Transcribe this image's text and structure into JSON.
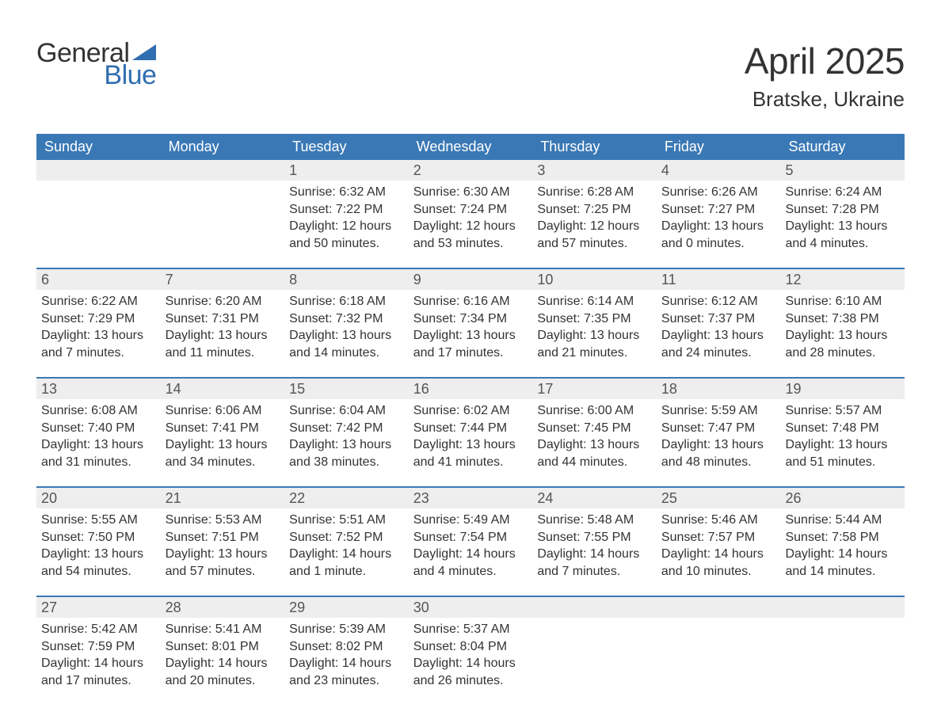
{
  "logo": {
    "text_general": "General",
    "text_blue": "Blue",
    "brand_color": "#2f6eb0"
  },
  "title": "April 2025",
  "location": "Bratske, Ukraine",
  "colors": {
    "header_bg": "#3a78b5",
    "header_text": "#ffffff",
    "daynum_bg": "#eeeeee",
    "body_text": "#333333",
    "row_border": "#3a78b5"
  },
  "weekdays": [
    "Sunday",
    "Monday",
    "Tuesday",
    "Wednesday",
    "Thursday",
    "Friday",
    "Saturday"
  ],
  "weeks": [
    [
      {
        "day": "",
        "sunrise": "",
        "sunset": "",
        "daylight": ""
      },
      {
        "day": "",
        "sunrise": "",
        "sunset": "",
        "daylight": ""
      },
      {
        "day": "1",
        "sunrise": "Sunrise: 6:32 AM",
        "sunset": "Sunset: 7:22 PM",
        "daylight": "Daylight: 12 hours and 50 minutes."
      },
      {
        "day": "2",
        "sunrise": "Sunrise: 6:30 AM",
        "sunset": "Sunset: 7:24 PM",
        "daylight": "Daylight: 12 hours and 53 minutes."
      },
      {
        "day": "3",
        "sunrise": "Sunrise: 6:28 AM",
        "sunset": "Sunset: 7:25 PM",
        "daylight": "Daylight: 12 hours and 57 minutes."
      },
      {
        "day": "4",
        "sunrise": "Sunrise: 6:26 AM",
        "sunset": "Sunset: 7:27 PM",
        "daylight": "Daylight: 13 hours and 0 minutes."
      },
      {
        "day": "5",
        "sunrise": "Sunrise: 6:24 AM",
        "sunset": "Sunset: 7:28 PM",
        "daylight": "Daylight: 13 hours and 4 minutes."
      }
    ],
    [
      {
        "day": "6",
        "sunrise": "Sunrise: 6:22 AM",
        "sunset": "Sunset: 7:29 PM",
        "daylight": "Daylight: 13 hours and 7 minutes."
      },
      {
        "day": "7",
        "sunrise": "Sunrise: 6:20 AM",
        "sunset": "Sunset: 7:31 PM",
        "daylight": "Daylight: 13 hours and 11 minutes."
      },
      {
        "day": "8",
        "sunrise": "Sunrise: 6:18 AM",
        "sunset": "Sunset: 7:32 PM",
        "daylight": "Daylight: 13 hours and 14 minutes."
      },
      {
        "day": "9",
        "sunrise": "Sunrise: 6:16 AM",
        "sunset": "Sunset: 7:34 PM",
        "daylight": "Daylight: 13 hours and 17 minutes."
      },
      {
        "day": "10",
        "sunrise": "Sunrise: 6:14 AM",
        "sunset": "Sunset: 7:35 PM",
        "daylight": "Daylight: 13 hours and 21 minutes."
      },
      {
        "day": "11",
        "sunrise": "Sunrise: 6:12 AM",
        "sunset": "Sunset: 7:37 PM",
        "daylight": "Daylight: 13 hours and 24 minutes."
      },
      {
        "day": "12",
        "sunrise": "Sunrise: 6:10 AM",
        "sunset": "Sunset: 7:38 PM",
        "daylight": "Daylight: 13 hours and 28 minutes."
      }
    ],
    [
      {
        "day": "13",
        "sunrise": "Sunrise: 6:08 AM",
        "sunset": "Sunset: 7:40 PM",
        "daylight": "Daylight: 13 hours and 31 minutes."
      },
      {
        "day": "14",
        "sunrise": "Sunrise: 6:06 AM",
        "sunset": "Sunset: 7:41 PM",
        "daylight": "Daylight: 13 hours and 34 minutes."
      },
      {
        "day": "15",
        "sunrise": "Sunrise: 6:04 AM",
        "sunset": "Sunset: 7:42 PM",
        "daylight": "Daylight: 13 hours and 38 minutes."
      },
      {
        "day": "16",
        "sunrise": "Sunrise: 6:02 AM",
        "sunset": "Sunset: 7:44 PM",
        "daylight": "Daylight: 13 hours and 41 minutes."
      },
      {
        "day": "17",
        "sunrise": "Sunrise: 6:00 AM",
        "sunset": "Sunset: 7:45 PM",
        "daylight": "Daylight: 13 hours and 44 minutes."
      },
      {
        "day": "18",
        "sunrise": "Sunrise: 5:59 AM",
        "sunset": "Sunset: 7:47 PM",
        "daylight": "Daylight: 13 hours and 48 minutes."
      },
      {
        "day": "19",
        "sunrise": "Sunrise: 5:57 AM",
        "sunset": "Sunset: 7:48 PM",
        "daylight": "Daylight: 13 hours and 51 minutes."
      }
    ],
    [
      {
        "day": "20",
        "sunrise": "Sunrise: 5:55 AM",
        "sunset": "Sunset: 7:50 PM",
        "daylight": "Daylight: 13 hours and 54 minutes."
      },
      {
        "day": "21",
        "sunrise": "Sunrise: 5:53 AM",
        "sunset": "Sunset: 7:51 PM",
        "daylight": "Daylight: 13 hours and 57 minutes."
      },
      {
        "day": "22",
        "sunrise": "Sunrise: 5:51 AM",
        "sunset": "Sunset: 7:52 PM",
        "daylight": "Daylight: 14 hours and 1 minute."
      },
      {
        "day": "23",
        "sunrise": "Sunrise: 5:49 AM",
        "sunset": "Sunset: 7:54 PM",
        "daylight": "Daylight: 14 hours and 4 minutes."
      },
      {
        "day": "24",
        "sunrise": "Sunrise: 5:48 AM",
        "sunset": "Sunset: 7:55 PM",
        "daylight": "Daylight: 14 hours and 7 minutes."
      },
      {
        "day": "25",
        "sunrise": "Sunrise: 5:46 AM",
        "sunset": "Sunset: 7:57 PM",
        "daylight": "Daylight: 14 hours and 10 minutes."
      },
      {
        "day": "26",
        "sunrise": "Sunrise: 5:44 AM",
        "sunset": "Sunset: 7:58 PM",
        "daylight": "Daylight: 14 hours and 14 minutes."
      }
    ],
    [
      {
        "day": "27",
        "sunrise": "Sunrise: 5:42 AM",
        "sunset": "Sunset: 7:59 PM",
        "daylight": "Daylight: 14 hours and 17 minutes."
      },
      {
        "day": "28",
        "sunrise": "Sunrise: 5:41 AM",
        "sunset": "Sunset: 8:01 PM",
        "daylight": "Daylight: 14 hours and 20 minutes."
      },
      {
        "day": "29",
        "sunrise": "Sunrise: 5:39 AM",
        "sunset": "Sunset: 8:02 PM",
        "daylight": "Daylight: 14 hours and 23 minutes."
      },
      {
        "day": "30",
        "sunrise": "Sunrise: 5:37 AM",
        "sunset": "Sunset: 8:04 PM",
        "daylight": "Daylight: 14 hours and 26 minutes."
      },
      {
        "day": "",
        "sunrise": "",
        "sunset": "",
        "daylight": ""
      },
      {
        "day": "",
        "sunrise": "",
        "sunset": "",
        "daylight": ""
      },
      {
        "day": "",
        "sunrise": "",
        "sunset": "",
        "daylight": ""
      }
    ]
  ]
}
